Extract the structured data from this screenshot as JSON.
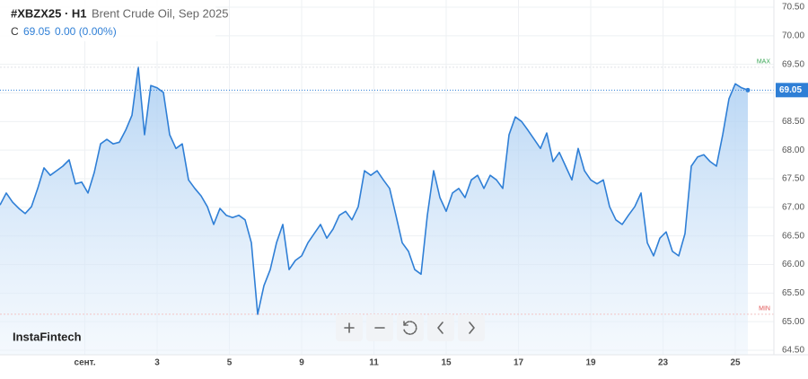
{
  "toolbar": {
    "symbol": "#XBZX25 · H1",
    "description": "Brent Crude Oil, Sep 2025",
    "ohlc_label": "C",
    "close": "69.05",
    "change": "0.00 (0.00%)"
  },
  "brand": "InstaFintech",
  "chart_data": {
    "type": "area",
    "color": "#2f7fd6",
    "values": [
      67.04,
      67.25,
      67.09,
      66.98,
      66.89,
      67.01,
      67.33,
      67.69,
      67.56,
      67.64,
      67.72,
      67.83,
      67.41,
      67.44,
      67.25,
      67.61,
      68.11,
      68.19,
      68.11,
      68.14,
      68.35,
      68.61,
      69.45,
      68.27,
      69.13,
      69.09,
      69.01,
      68.27,
      68.03,
      68.11,
      67.48,
      67.33,
      67.2,
      67.01,
      66.7,
      66.98,
      66.86,
      66.82,
      66.86,
      66.78,
      66.38,
      65.13,
      65.63,
      65.91,
      66.38,
      66.7,
      65.91,
      66.07,
      66.15,
      66.38,
      66.54,
      66.7,
      66.46,
      66.62,
      66.86,
      66.93,
      66.78,
      67.01,
      67.64,
      67.56,
      67.64,
      67.48,
      67.33,
      66.86,
      66.38,
      66.23,
      65.91,
      65.83,
      66.86,
      67.64,
      67.17,
      66.93,
      67.25,
      67.33,
      67.17,
      67.48,
      67.56,
      67.33,
      67.56,
      67.48,
      67.33,
      68.27,
      68.58,
      68.5,
      68.35,
      68.19,
      68.03,
      68.3,
      67.8,
      67.96,
      67.72,
      67.48,
      68.03,
      67.64,
      67.48,
      67.41,
      67.48,
      67.01,
      66.78,
      66.7,
      66.86,
      67.01,
      67.25,
      66.38,
      66.15,
      66.46,
      66.57,
      66.23,
      66.15,
      66.54,
      67.72,
      67.88,
      67.92,
      67.8,
      67.72,
      68.27,
      68.9,
      69.16,
      69.09,
      69.05
    ],
    "xlim": [
      0,
      119
    ],
    "xticks": [
      {
        "value": 13.5,
        "label": "сент."
      },
      {
        "value": 25,
        "label": "3"
      },
      {
        "value": 36.5,
        "label": "5"
      },
      {
        "value": 48,
        "label": "9"
      },
      {
        "value": 59.5,
        "label": "11"
      },
      {
        "value": 71,
        "label": "15"
      },
      {
        "value": 82.5,
        "label": "17"
      },
      {
        "value": 94,
        "label": "19"
      },
      {
        "value": 105.5,
        "label": "23"
      },
      {
        "value": 117,
        "label": "25"
      }
    ],
    "ylim": [
      64.5,
      70.5
    ],
    "yticks": [
      {
        "value": 64.5,
        "label": "64.50"
      },
      {
        "value": 65,
        "label": "65.00"
      },
      {
        "value": 65.5,
        "label": "65.50"
      },
      {
        "value": 66,
        "label": "66.00"
      },
      {
        "value": 66.5,
        "label": "66.50"
      },
      {
        "value": 67,
        "label": "67.00"
      },
      {
        "value": 67.5,
        "label": "67.50"
      },
      {
        "value": 68,
        "label": "68.00"
      },
      {
        "value": 68.5,
        "label": "68.50"
      },
      {
        "value": 69,
        "label": "69.00"
      },
      {
        "value": 69.5,
        "label": "69.50"
      },
      {
        "value": 70,
        "label": "70.00"
      },
      {
        "value": 70.5,
        "label": "70.50"
      }
    ],
    "max_label": "MAX",
    "min_label": "MIN",
    "grid": true
  }
}
